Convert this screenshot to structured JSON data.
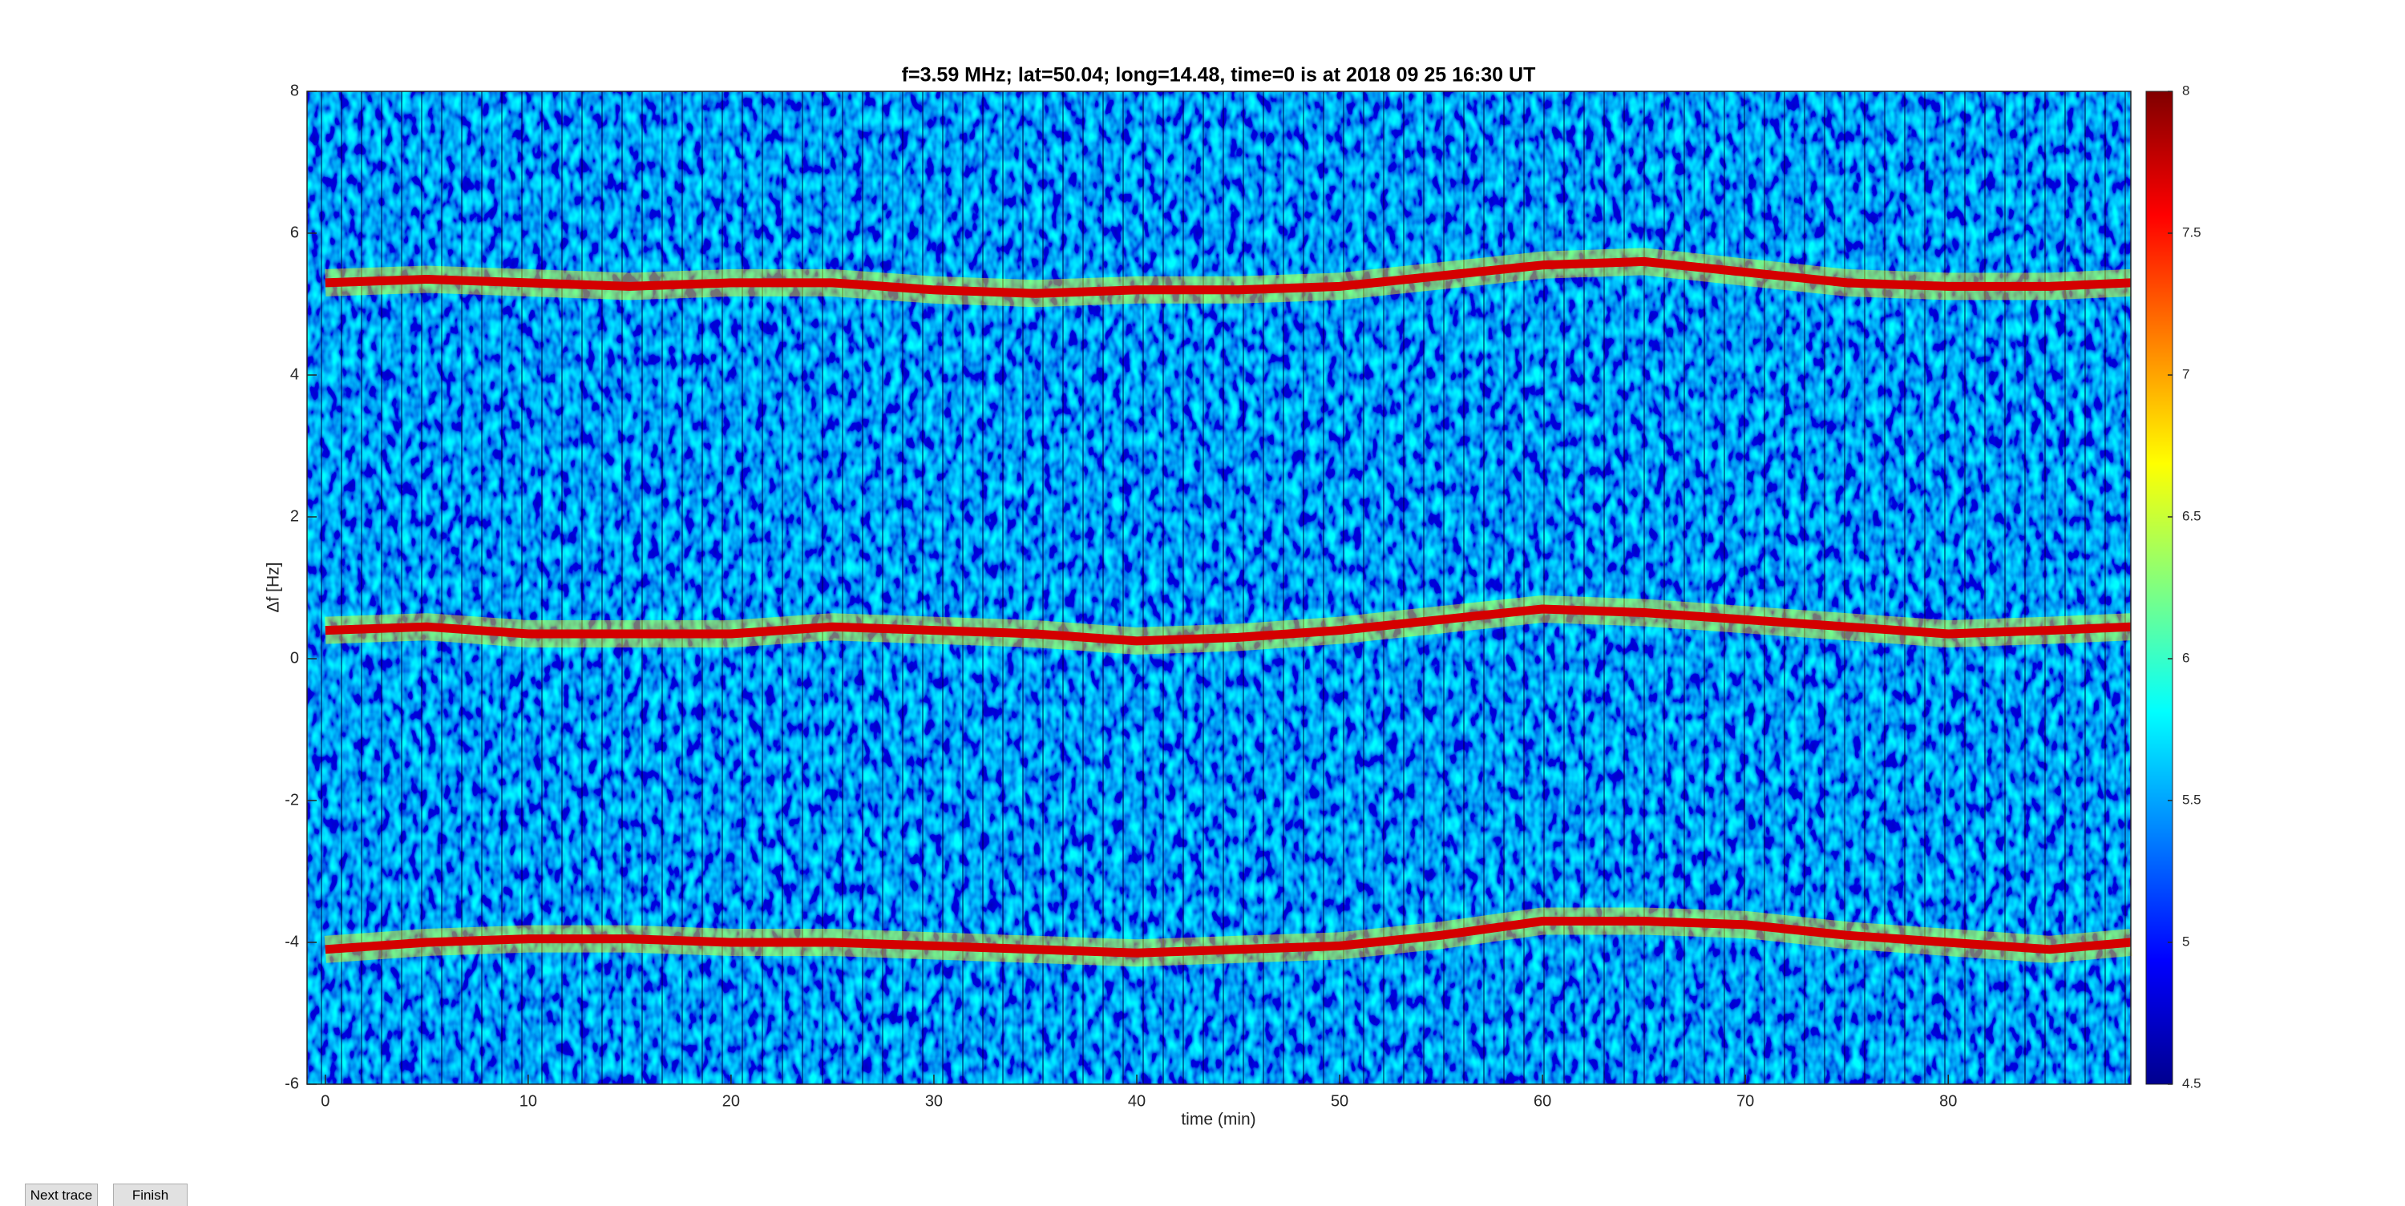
{
  "chart_data": {
    "type": "spectrogram",
    "title": "f=3.59 MHz;  lat=50.04; long=14.48, time=0 is at 2018 09 25 16:30 UT",
    "x_label": "time (min)",
    "y_label": "Δf [Hz]",
    "xlim": [
      -0.9,
      89
    ],
    "xticks": [
      0,
      10,
      20,
      30,
      40,
      50,
      60,
      70,
      80
    ],
    "ylim": [
      -6,
      8
    ],
    "yticks": [
      -6,
      -4,
      -2,
      0,
      2,
      4,
      6,
      8
    ],
    "clim": [
      4.5,
      8
    ],
    "cticks": [
      4.5,
      5,
      5.5,
      6,
      6.5,
      7,
      7.5,
      8
    ],
    "colormap": [
      "#00008f",
      "#0000ff",
      "#0080ff",
      "#00ffff",
      "#80ff80",
      "#ffff00",
      "#ff8000",
      "#ff0000",
      "#800000"
    ],
    "x": [
      0,
      5,
      10,
      15,
      20,
      25,
      30,
      35,
      40,
      45,
      50,
      55,
      60,
      65,
      70,
      75,
      80,
      85,
      89
    ],
    "series": [
      {
        "color": "#d40000",
        "values": [
          5.3,
          5.35,
          5.3,
          5.25,
          5.3,
          5.3,
          5.2,
          5.15,
          5.2,
          5.2,
          5.25,
          5.4,
          5.55,
          5.6,
          5.45,
          5.3,
          5.25,
          5.25,
          5.3
        ]
      },
      {
        "color": "#d40000",
        "values": [
          0.4,
          0.45,
          0.35,
          0.35,
          0.35,
          0.45,
          0.4,
          0.35,
          0.25,
          0.3,
          0.4,
          0.55,
          0.7,
          0.65,
          0.55,
          0.45,
          0.35,
          0.4,
          0.45
        ]
      },
      {
        "color": "#d40000",
        "values": [
          -4.1,
          -4.0,
          -3.95,
          -3.95,
          -4.0,
          -4.0,
          -4.05,
          -4.1,
          -4.15,
          -4.1,
          -4.05,
          -3.9,
          -3.7,
          -3.7,
          -3.75,
          -3.9,
          -4.0,
          -4.1,
          -4.0
        ]
      }
    ]
  },
  "buttons": [
    "Next trace",
    "Finish"
  ]
}
